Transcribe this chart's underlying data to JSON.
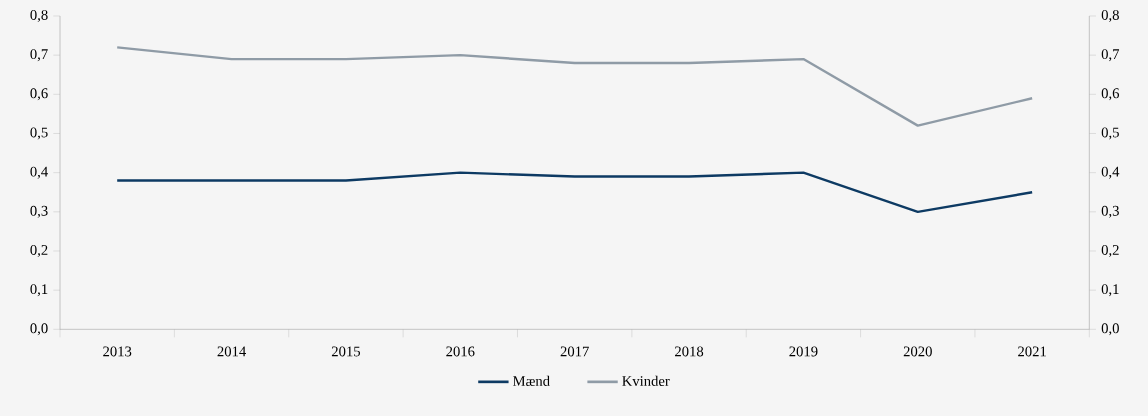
{
  "chart_data": {
    "type": "line",
    "categories": [
      "2013",
      "2014",
      "2015",
      "2016",
      "2017",
      "2018",
      "2019",
      "2020",
      "2021"
    ],
    "series": [
      {
        "name": "Mænd",
        "color": "#0d3a63",
        "values": [
          0.38,
          0.38,
          0.38,
          0.4,
          0.39,
          0.39,
          0.4,
          0.3,
          0.35
        ]
      },
      {
        "name": "Kvinder",
        "color": "#8f9ba6",
        "values": [
          0.72,
          0.69,
          0.69,
          0.7,
          0.68,
          0.68,
          0.69,
          0.52,
          0.59
        ]
      }
    ],
    "ylim": [
      0,
      0.8
    ],
    "yticks": [
      {
        "value": 0,
        "label": "0,0"
      },
      {
        "value": 0.1,
        "label": "0,1"
      },
      {
        "value": 0.2,
        "label": "0,2"
      },
      {
        "value": 0.3,
        "label": "0,3"
      },
      {
        "value": 0.4,
        "label": "0,4"
      },
      {
        "value": 0.5,
        "label": "0,5"
      },
      {
        "value": 0.6,
        "label": "0,6"
      },
      {
        "value": 0.7,
        "label": "0,7"
      },
      {
        "value": 0.8,
        "label": "0,8"
      }
    ],
    "y2lim": [
      0,
      0.8
    ],
    "y2ticks": [
      {
        "value": 0,
        "label": "0,0"
      },
      {
        "value": 0.1,
        "label": "0,1"
      },
      {
        "value": 0.2,
        "label": "0,2"
      },
      {
        "value": 0.3,
        "label": "0,3"
      },
      {
        "value": 0.4,
        "label": "0,4"
      },
      {
        "value": 0.5,
        "label": "0,5"
      },
      {
        "value": 0.6,
        "label": "0,6"
      },
      {
        "value": 0.7,
        "label": "0,7"
      },
      {
        "value": 0.8,
        "label": "0,8"
      }
    ],
    "legend": "bottom",
    "marker": "none",
    "line_style": "solid",
    "grid": false
  }
}
